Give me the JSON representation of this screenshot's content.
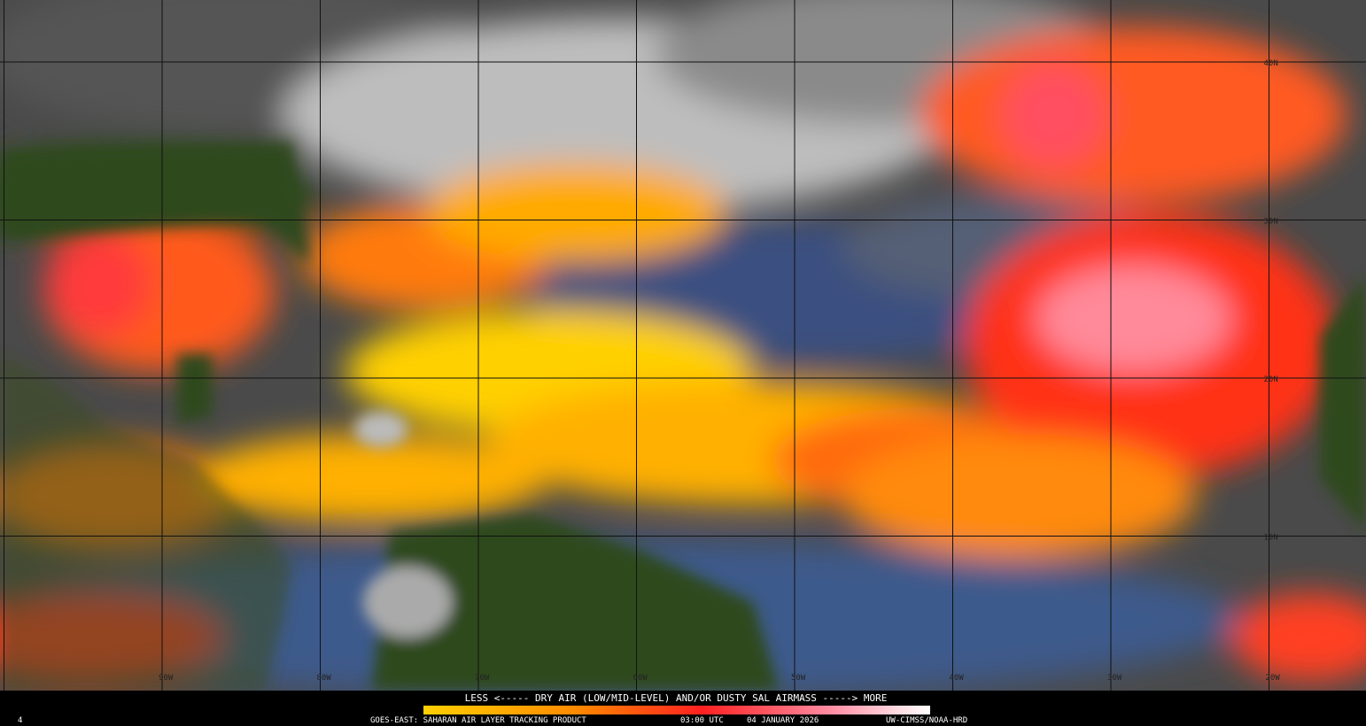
{
  "map": {
    "latitude_labels": [
      "40N",
      "30N",
      "20N",
      "10N"
    ],
    "longitude_labels": [
      "90W",
      "80W",
      "70W",
      "60W",
      "50W",
      "40W",
      "30W",
      "20W"
    ]
  },
  "legend": {
    "caption": "LESS <----- DRY AIR (LOW/MID-LEVEL) AND/OR DUSTY SAL AIRMASS -----> MORE"
  },
  "footer": {
    "frame": "4",
    "product": "GOES-EAST: SAHARAN AIR LAYER TRACKING PRODUCT",
    "time": "03:00 UTC",
    "date": "04 JANUARY 2026",
    "credit": "UW-CIMSS/NOAA-HRD"
  }
}
